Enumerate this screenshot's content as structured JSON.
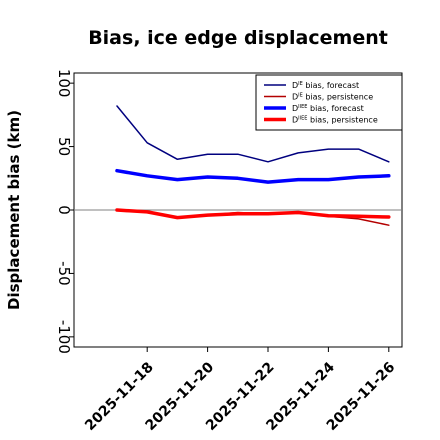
{
  "chart_data": {
    "type": "line",
    "title": "Bias, ice edge displacement",
    "ylabel": "Displacement bias (km)",
    "xlabel": "",
    "ylim": [
      -108,
      108
    ],
    "yticks": [
      -100,
      -50,
      0,
      50,
      100
    ],
    "x": [
      "2025-11-17",
      "2025-11-18",
      "2025-11-19",
      "2025-11-20",
      "2025-11-21",
      "2025-11-22",
      "2025-11-23",
      "2025-11-24",
      "2025-11-25",
      "2025-11-26"
    ],
    "xticks": [
      "2025-11-18",
      "2025-11-20",
      "2025-11-22",
      "2025-11-24",
      "2025-11-26"
    ],
    "highlight_tick": "2025-11-18",
    "highlight_color": "#228b22",
    "zero_line": true,
    "grid": false,
    "legend_position": "top-right",
    "series": [
      {
        "name": "bias, forecast",
        "legend_base": "D",
        "legend_sup": "IE",
        "color": "#00007f",
        "width": 1.5,
        "values": [
          82,
          53,
          40,
          44,
          44,
          38,
          45,
          48,
          48,
          38
        ]
      },
      {
        "name": "bias, persistence",
        "legend_base": "D",
        "legend_sup": "IE",
        "color": "#b30000",
        "width": 1.5,
        "values": [
          0,
          -2,
          -6,
          -4,
          -2,
          -3,
          -2,
          -5,
          -7,
          -12
        ]
      },
      {
        "name": "bias, forecast",
        "legend_base": "D",
        "legend_sup": "IIEE",
        "color": "#0000ff",
        "width": 3.5,
        "values": [
          31,
          27,
          24,
          26,
          25,
          22,
          24,
          24,
          26,
          27
        ]
      },
      {
        "name": "bias, persistence",
        "legend_base": "D",
        "legend_sup": "IIEE",
        "color": "#ff0000",
        "width": 3.5,
        "values": [
          0,
          -1.5,
          -6,
          -4,
          -3,
          -3,
          -2,
          -4.5,
          -5,
          -5.5
        ]
      }
    ]
  }
}
